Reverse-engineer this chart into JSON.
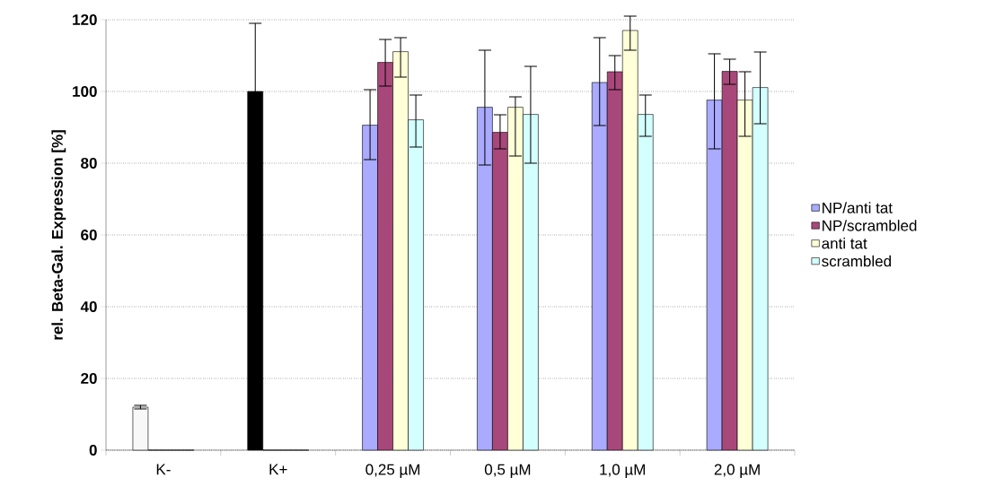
{
  "chart_data": {
    "type": "bar",
    "ylabel": "rel. Beta-Gal. Expression [%]",
    "categories": [
      "K-",
      "K+",
      "0,25 µM",
      "0,5 µM",
      "1,0 µM",
      "2,0 µM"
    ],
    "ylim": [
      0,
      120
    ],
    "yticks": [
      0,
      20,
      40,
      60,
      80,
      100,
      120
    ],
    "grid": "y",
    "legend": "right",
    "series": [
      {
        "name": "NP/anti tat",
        "color": "#aaaaff",
        "colors": [
          "#f8f8f8",
          "#000000",
          "#aaaaff",
          "#aaaaff",
          "#aaaaff",
          "#aaaaff"
        ],
        "values": [
          12,
          100,
          90.6,
          95.6,
          102.5,
          97.6
        ],
        "errors": [
          0.5,
          19,
          [
            81,
            100.5
          ],
          [
            79.5,
            111.5
          ],
          [
            90.5,
            115
          ],
          [
            84,
            110.5
          ]
        ]
      },
      {
        "name": "NP/scrambled",
        "color": "#a8487a",
        "values": [
          0,
          0,
          108.1,
          88.6,
          105.5,
          105.6
        ],
        "errors": [
          null,
          null,
          [
            101.5,
            114.5
          ],
          [
            84,
            93.5
          ],
          [
            100.5,
            110
          ],
          [
            102,
            109
          ]
        ]
      },
      {
        "name": "anti tat",
        "color": "#ffffd8",
        "values": [
          0,
          0,
          111.1,
          95.6,
          117,
          97.6
        ],
        "errors": [
          null,
          null,
          [
            104,
            115
          ],
          [
            82,
            98.5
          ],
          [
            111.5,
            121
          ],
          [
            87.5,
            105.5
          ]
        ]
      },
      {
        "name": "scrambled",
        "color": "#d4ffff",
        "values": [
          0,
          0,
          92.1,
          93.6,
          93.6,
          101.1
        ],
        "errors": [
          null,
          null,
          [
            84.5,
            99
          ],
          [
            80,
            107
          ],
          [
            87.5,
            99
          ],
          [
            91,
            111
          ]
        ]
      }
    ]
  }
}
